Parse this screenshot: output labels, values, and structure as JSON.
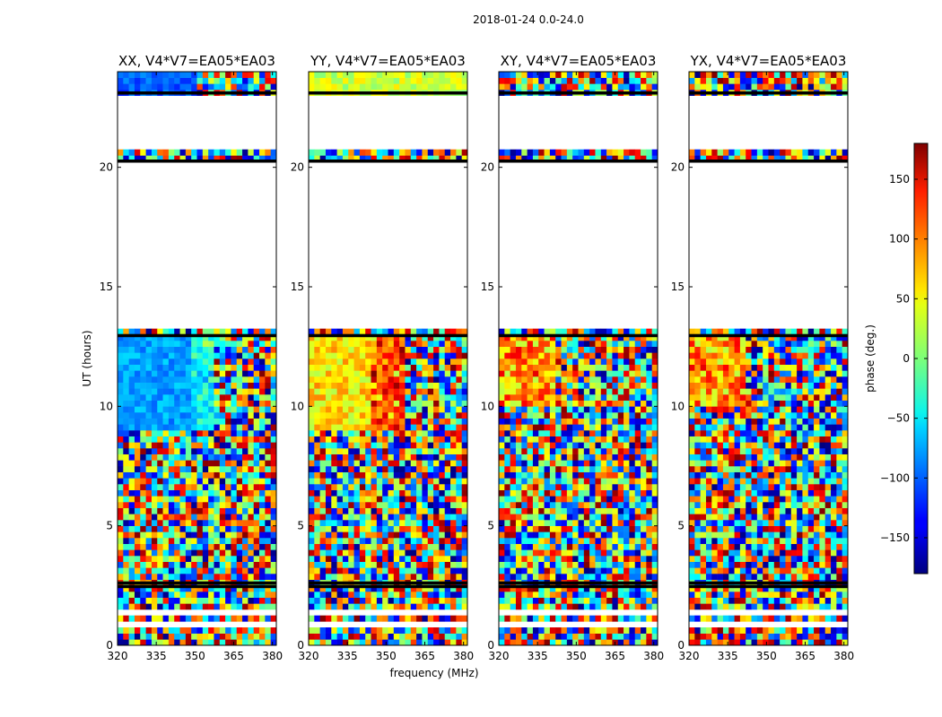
{
  "chart_data": {
    "type": "heatmap",
    "suptitle": "2018-01-24 0.0-24.0",
    "xlabel": "frequency (MHz)",
    "ylabel": "UT (hours)",
    "xlim": [
      320,
      381.5
    ],
    "ylim": [
      0,
      24
    ],
    "xticks": [
      320,
      335,
      350,
      365,
      380
    ],
    "yticks": [
      0,
      5,
      10,
      15,
      20
    ],
    "panels": [
      {
        "title": "XX, V4*V7=EA05*EA03",
        "pol": "XX"
      },
      {
        "title": "YY, V4*V7=EA05*EA03",
        "pol": "YY"
      },
      {
        "title": "XY, V4*V7=EA05*EA03",
        "pol": "XY"
      },
      {
        "title": "YX, V4*V7=EA05*EA03",
        "pol": "YX"
      }
    ],
    "colorbar": {
      "label": "phase (deg.)",
      "colormap": "jet",
      "vmin": -180,
      "vmax": 180,
      "ticks": [
        -150,
        -100,
        -50,
        0,
        50,
        100,
        150
      ],
      "tick_labels": [
        "−150",
        "−100",
        "−50",
        "0",
        "50",
        "100",
        "150"
      ]
    },
    "data_gaps_ut_hours": [
      [
        20.8,
        23.0
      ],
      [
        13.3,
        20.2
      ],
      [
        1.25,
        1.4
      ],
      [
        0.75,
        1.0
      ]
    ],
    "flagged_rows_ut_hours": [
      2.45,
      2.6,
      23.1,
      20.25,
      12.95
    ]
  }
}
